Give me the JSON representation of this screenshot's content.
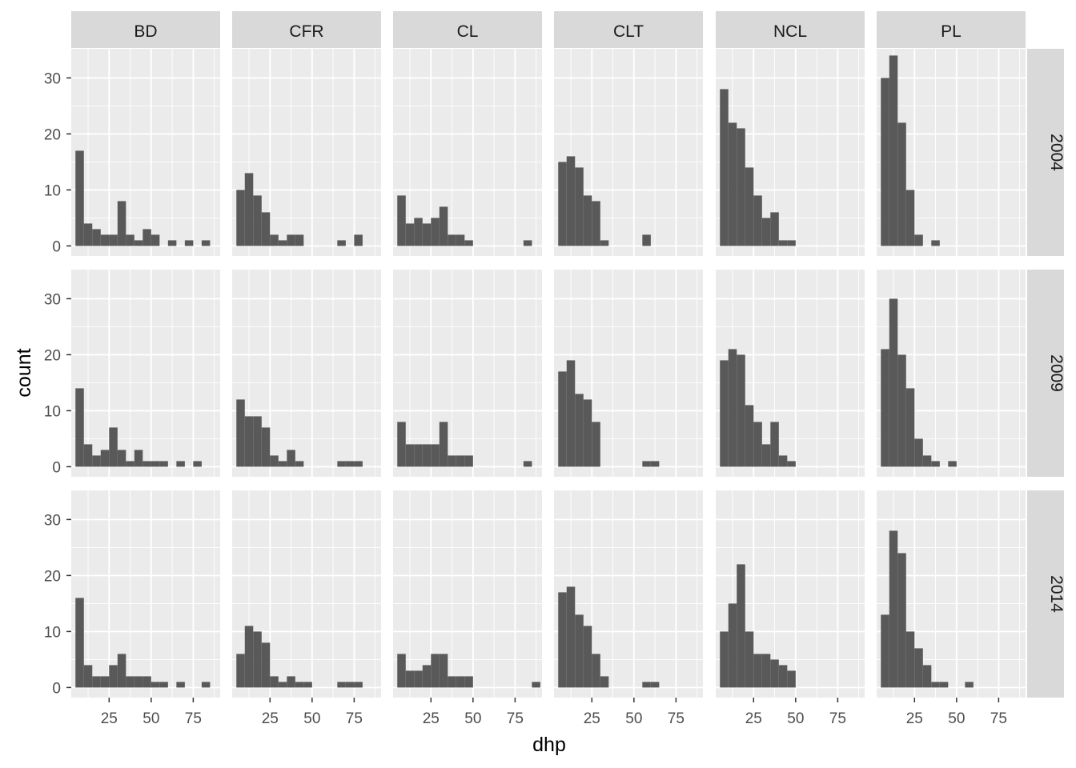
{
  "chart_data": {
    "type": "bar",
    "xlabel": "dhp",
    "ylabel": "count",
    "x_ticks": [
      25,
      50,
      75
    ],
    "y_ticks": [
      0,
      10,
      20,
      30
    ],
    "xlim": [
      2.5,
      91
    ],
    "ylim": [
      -1.8,
      35.2
    ],
    "bin_width": 5,
    "bin_starts": [
      5,
      10,
      15,
      20,
      25,
      30,
      35,
      40,
      45,
      50,
      55,
      60,
      65,
      70,
      75,
      80,
      85
    ],
    "panels": [
      {
        "row": "2004",
        "col": "BD",
        "counts": [
          17,
          4,
          3,
          2,
          2,
          8,
          2,
          1,
          3,
          2,
          0,
          1,
          0,
          1,
          0,
          1,
          0
        ]
      },
      {
        "row": "2004",
        "col": "CFR",
        "counts": [
          10,
          13,
          9,
          6,
          2,
          1,
          2,
          2,
          0,
          0,
          0,
          0,
          1,
          0,
          2,
          0,
          0
        ]
      },
      {
        "row": "2004",
        "col": "CL",
        "counts": [
          9,
          4,
          5,
          4,
          5,
          7,
          2,
          2,
          1,
          0,
          0,
          0,
          0,
          0,
          0,
          1,
          0
        ]
      },
      {
        "row": "2004",
        "col": "CLT",
        "counts": [
          15,
          16,
          14,
          9,
          8,
          1,
          0,
          0,
          0,
          0,
          2,
          0,
          0,
          0,
          0,
          0,
          0
        ]
      },
      {
        "row": "2004",
        "col": "NCL",
        "counts": [
          28,
          22,
          21,
          14,
          9,
          5,
          6,
          1,
          1,
          0,
          0,
          0,
          0,
          0,
          0,
          0,
          0
        ]
      },
      {
        "row": "2004",
        "col": "PL",
        "counts": [
          30,
          34,
          22,
          10,
          2,
          0,
          1,
          0,
          0,
          0,
          0,
          0,
          0,
          0,
          0,
          0,
          0
        ]
      },
      {
        "row": "2009",
        "col": "BD",
        "counts": [
          14,
          4,
          2,
          3,
          7,
          3,
          1,
          3,
          1,
          1,
          1,
          0,
          1,
          0,
          1,
          0,
          0
        ]
      },
      {
        "row": "2009",
        "col": "CFR",
        "counts": [
          12,
          9,
          9,
          7,
          2,
          1,
          3,
          1,
          0,
          0,
          0,
          0,
          1,
          1,
          1,
          0,
          0
        ]
      },
      {
        "row": "2009",
        "col": "CL",
        "counts": [
          8,
          4,
          4,
          4,
          4,
          8,
          2,
          2,
          2,
          0,
          0,
          0,
          0,
          0,
          0,
          1,
          0
        ]
      },
      {
        "row": "2009",
        "col": "CLT",
        "counts": [
          17,
          19,
          13,
          12,
          8,
          0,
          0,
          0,
          0,
          0,
          1,
          1,
          0,
          0,
          0,
          0,
          0
        ]
      },
      {
        "row": "2009",
        "col": "NCL",
        "counts": [
          19,
          21,
          20,
          11,
          8,
          4,
          8,
          2,
          1,
          0,
          0,
          0,
          0,
          0,
          0,
          0,
          0
        ]
      },
      {
        "row": "2009",
        "col": "PL",
        "counts": [
          21,
          30,
          20,
          14,
          5,
          2,
          1,
          0,
          1,
          0,
          0,
          0,
          0,
          0,
          0,
          0,
          0
        ]
      },
      {
        "row": "2014",
        "col": "BD",
        "counts": [
          16,
          4,
          2,
          2,
          4,
          6,
          2,
          2,
          2,
          1,
          1,
          0,
          1,
          0,
          0,
          1,
          0
        ]
      },
      {
        "row": "2014",
        "col": "CFR",
        "counts": [
          6,
          11,
          10,
          8,
          2,
          1,
          2,
          1,
          1,
          0,
          0,
          0,
          1,
          1,
          1,
          0,
          0
        ]
      },
      {
        "row": "2014",
        "col": "CL",
        "counts": [
          6,
          3,
          3,
          4,
          6,
          6,
          2,
          2,
          2,
          0,
          0,
          0,
          0,
          0,
          0,
          0,
          1
        ]
      },
      {
        "row": "2014",
        "col": "CLT",
        "counts": [
          17,
          18,
          13,
          11,
          6,
          2,
          0,
          0,
          0,
          0,
          1,
          1,
          0,
          0,
          0,
          0,
          0
        ]
      },
      {
        "row": "2014",
        "col": "NCL",
        "counts": [
          10,
          15,
          22,
          10,
          6,
          6,
          5,
          4,
          3,
          0,
          0,
          0,
          0,
          0,
          0,
          0,
          0
        ]
      },
      {
        "row": "2014",
        "col": "PL",
        "counts": [
          13,
          28,
          24,
          10,
          7,
          4,
          1,
          1,
          0,
          0,
          1,
          0,
          0,
          0,
          0,
          0,
          0
        ]
      }
    ]
  },
  "facets": {
    "columns": [
      "BD",
      "CFR",
      "CL",
      "CLT",
      "NCL",
      "PL"
    ],
    "rows": [
      "2004",
      "2009",
      "2014"
    ]
  },
  "colors": {
    "bar_fill": "#595959",
    "panel_background": "#ebebeb",
    "grid_major": "#ffffff",
    "strip_background": "#d9d9d9",
    "tick_text": "#4d4d4d",
    "title_text": "#000000"
  }
}
